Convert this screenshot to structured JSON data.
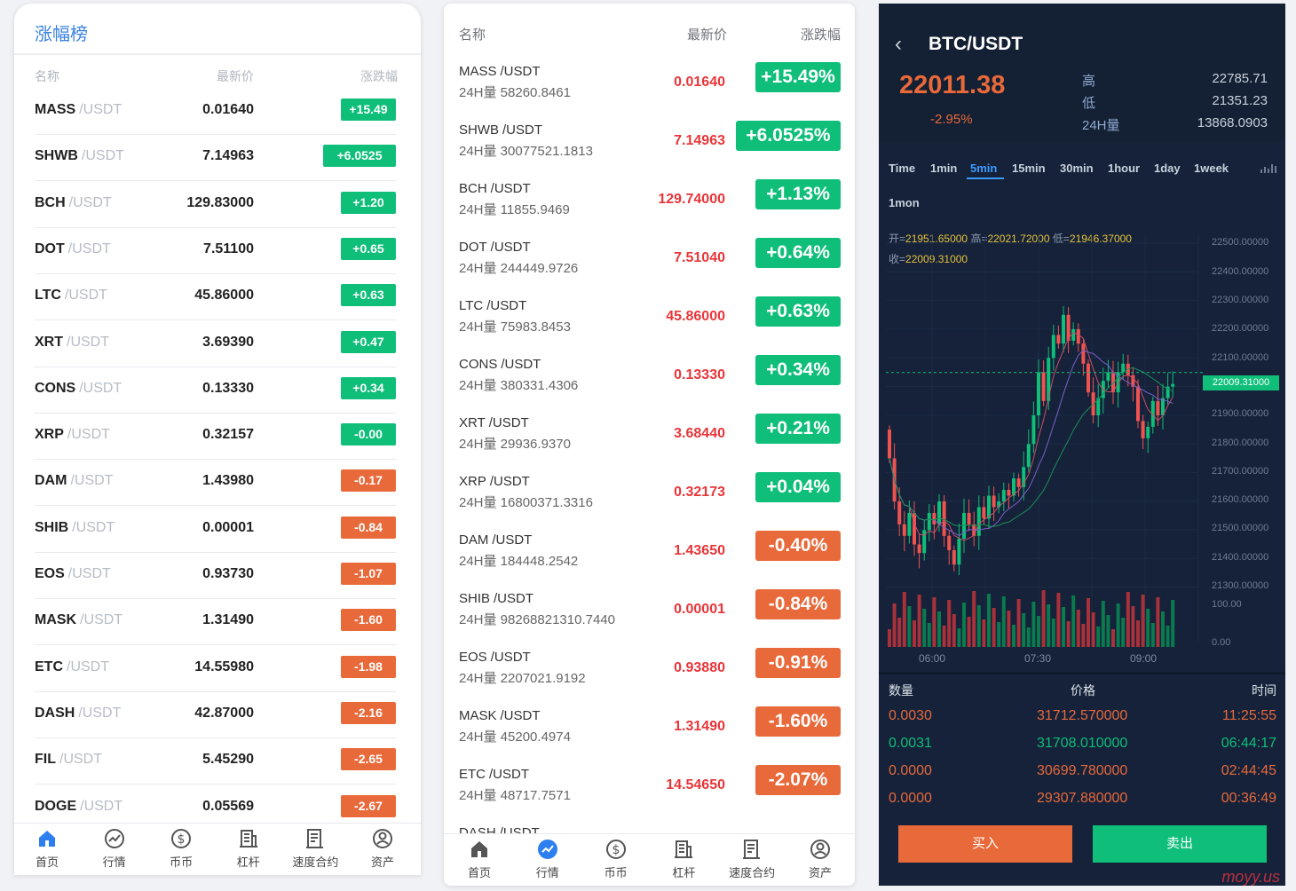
{
  "panel1": {
    "title": "涨幅榜",
    "headers": {
      "name": "名称",
      "price": "最新价",
      "change": "涨跌幅"
    },
    "rows": [
      {
        "base": "MASS",
        "quote": "/USDT",
        "price": "0.01640",
        "change": "+15.49",
        "dir": "up"
      },
      {
        "base": "SHWB",
        "quote": "/USDT",
        "price": "7.14963",
        "change": "+6.0525",
        "dir": "up"
      },
      {
        "base": "BCH",
        "quote": "/USDT",
        "price": "129.83000",
        "change": "+1.20",
        "dir": "up"
      },
      {
        "base": "DOT",
        "quote": "/USDT",
        "price": "7.51100",
        "change": "+0.65",
        "dir": "up"
      },
      {
        "base": "LTC",
        "quote": "/USDT",
        "price": "45.86000",
        "change": "+0.63",
        "dir": "up"
      },
      {
        "base": "XRT",
        "quote": "/USDT",
        "price": "3.69390",
        "change": "+0.47",
        "dir": "up"
      },
      {
        "base": "CONS",
        "quote": "/USDT",
        "price": "0.13330",
        "change": "+0.34",
        "dir": "up"
      },
      {
        "base": "XRP",
        "quote": "/USDT",
        "price": "0.32157",
        "change": "-0.00",
        "dir": "up"
      },
      {
        "base": "DAM",
        "quote": "/USDT",
        "price": "1.43980",
        "change": "-0.17",
        "dir": "down"
      },
      {
        "base": "SHIB",
        "quote": "/USDT",
        "price": "0.00001",
        "change": "-0.84",
        "dir": "down"
      },
      {
        "base": "EOS",
        "quote": "/USDT",
        "price": "0.93730",
        "change": "-1.07",
        "dir": "down"
      },
      {
        "base": "MASK",
        "quote": "/USDT",
        "price": "1.31490",
        "change": "-1.60",
        "dir": "down"
      },
      {
        "base": "ETC",
        "quote": "/USDT",
        "price": "14.55980",
        "change": "-1.98",
        "dir": "down"
      },
      {
        "base": "DASH",
        "quote": "/USDT",
        "price": "42.87000",
        "change": "-2.16",
        "dir": "down"
      },
      {
        "base": "FIL",
        "quote": "/USDT",
        "price": "5.45290",
        "change": "-2.65",
        "dir": "down"
      },
      {
        "base": "DOGE",
        "quote": "/USDT",
        "price": "0.05569",
        "change": "-2.67",
        "dir": "down"
      }
    ],
    "tabs": [
      {
        "label": "首页",
        "icon": "home-icon",
        "active": true
      },
      {
        "label": "行情",
        "icon": "trend-icon",
        "active": false
      },
      {
        "label": "币币",
        "icon": "dollar-icon",
        "active": false
      },
      {
        "label": "杠杆",
        "icon": "building-icon",
        "active": false
      },
      {
        "label": "速度合约",
        "icon": "document-icon",
        "active": false
      },
      {
        "label": "资产",
        "icon": "user-icon",
        "active": false
      }
    ]
  },
  "panel2": {
    "headers": {
      "name": "名称",
      "price": "最新价",
      "change": "涨跌幅"
    },
    "rows": [
      {
        "base": "MASS",
        "quote": "/USDT",
        "vol": "24H量 58260.8461",
        "price": "0.01640",
        "change": "+15.49%",
        "dir": "up"
      },
      {
        "base": "SHWB",
        "quote": "/USDT",
        "vol": "24H量 30077521.1813",
        "price": "7.14963",
        "change": "+6.0525%",
        "dir": "up"
      },
      {
        "base": "BCH",
        "quote": "/USDT",
        "vol": "24H量 11855.9469",
        "price": "129.74000",
        "change": "+1.13%",
        "dir": "up"
      },
      {
        "base": "DOT",
        "quote": "/USDT",
        "vol": "24H量 244449.9726",
        "price": "7.51040",
        "change": "+0.64%",
        "dir": "up"
      },
      {
        "base": "LTC",
        "quote": "/USDT",
        "vol": "24H量 75983.8453",
        "price": "45.86000",
        "change": "+0.63%",
        "dir": "up"
      },
      {
        "base": "CONS",
        "quote": "/USDT",
        "vol": "24H量 380331.4306",
        "price": "0.13330",
        "change": "+0.34%",
        "dir": "up"
      },
      {
        "base": "XRT",
        "quote": "/USDT",
        "vol": "24H量 29936.9370",
        "price": "3.68440",
        "change": "+0.21%",
        "dir": "up"
      },
      {
        "base": "XRP",
        "quote": "/USDT",
        "vol": "24H量 16800371.3316",
        "price": "0.32173",
        "change": "+0.04%",
        "dir": "up"
      },
      {
        "base": "DAM",
        "quote": "/USDT",
        "vol": "24H量 184448.2542",
        "price": "1.43650",
        "change": "-0.40%",
        "dir": "down"
      },
      {
        "base": "SHIB",
        "quote": "/USDT",
        "vol": "24H量 98268821310.7440",
        "price": "0.00001",
        "change": "-0.84%",
        "dir": "down"
      },
      {
        "base": "EOS",
        "quote": "/USDT",
        "vol": "24H量 2207021.9192",
        "price": "0.93880",
        "change": "-0.91%",
        "dir": "down"
      },
      {
        "base": "MASK",
        "quote": "/USDT",
        "vol": "24H量 45200.4974",
        "price": "1.31490",
        "change": "-1.60%",
        "dir": "down"
      },
      {
        "base": "ETC",
        "quote": "/USDT",
        "vol": "24H量 48717.7571",
        "price": "14.54650",
        "change": "-2.07%",
        "dir": "down"
      },
      {
        "base": "DASH",
        "quote": "/USDT",
        "vol": "",
        "price": "",
        "change": "",
        "dir": "down"
      }
    ],
    "tabs": [
      {
        "label": "首页",
        "icon": "home-icon",
        "active": false
      },
      {
        "label": "行情",
        "icon": "trend-icon",
        "active": true
      },
      {
        "label": "币币",
        "icon": "dollar-icon",
        "active": false
      },
      {
        "label": "杠杆",
        "icon": "building-icon",
        "active": false
      },
      {
        "label": "速度合约",
        "icon": "document-icon",
        "active": false
      },
      {
        "label": "资产",
        "icon": "user-icon",
        "active": false
      }
    ]
  },
  "panel3": {
    "pair": "BTC/USDT",
    "last_price": "22011.38",
    "change": "-2.95%",
    "stats": [
      {
        "label": "高",
        "value": "22785.71"
      },
      {
        "label": "低",
        "value": "21351.23"
      },
      {
        "label": "24H量",
        "value": "13868.0903"
      }
    ],
    "intervals": [
      "Time",
      "1min",
      "5min",
      "15min",
      "30min",
      "1hour",
      "1day",
      "1week",
      "1mon"
    ],
    "active_interval": "5min",
    "ohlc": {
      "open_label": "开=",
      "open": "21951.65000",
      "high_label": "高=",
      "high": "22021.72000",
      "low_label": "低=",
      "low": "21946.37000",
      "close_label": "收=",
      "close": "22009.31000"
    },
    "price_axis": [
      "22500.00000",
      "22400.00000",
      "22300.00000",
      "22200.00000",
      "22100.00000",
      "21900.00000",
      "21800.00000",
      "21700.00000",
      "21600.00000",
      "21500.00000",
      "21400.00000",
      "21300.00000"
    ],
    "current_marker": "22009.31000",
    "volume_axis": [
      "100.00",
      "0.00"
    ],
    "time_axis": [
      "06:00",
      "07:30",
      "09:00"
    ],
    "trades_header": {
      "amount": "数量",
      "price": "价格",
      "time": "时间"
    },
    "trades": [
      {
        "amount": "0.0030",
        "price": "31712.570000",
        "time": "11:25:55",
        "side": "sell"
      },
      {
        "amount": "0.0031",
        "price": "31708.010000",
        "time": "06:44:17",
        "side": "buy"
      },
      {
        "amount": "0.0000",
        "price": "30699.780000",
        "time": "02:44:45",
        "side": "sell"
      },
      {
        "amount": "0.0000",
        "price": "29307.880000",
        "time": "00:36:49",
        "side": "sell"
      }
    ],
    "buy_label": "买入",
    "sell_label": "卖出",
    "watermark": "moyy.us",
    "colors": {
      "up": "#0ebe79",
      "down": "#e8693a",
      "bg": "#15223a",
      "accent": "#3b9bff"
    }
  }
}
